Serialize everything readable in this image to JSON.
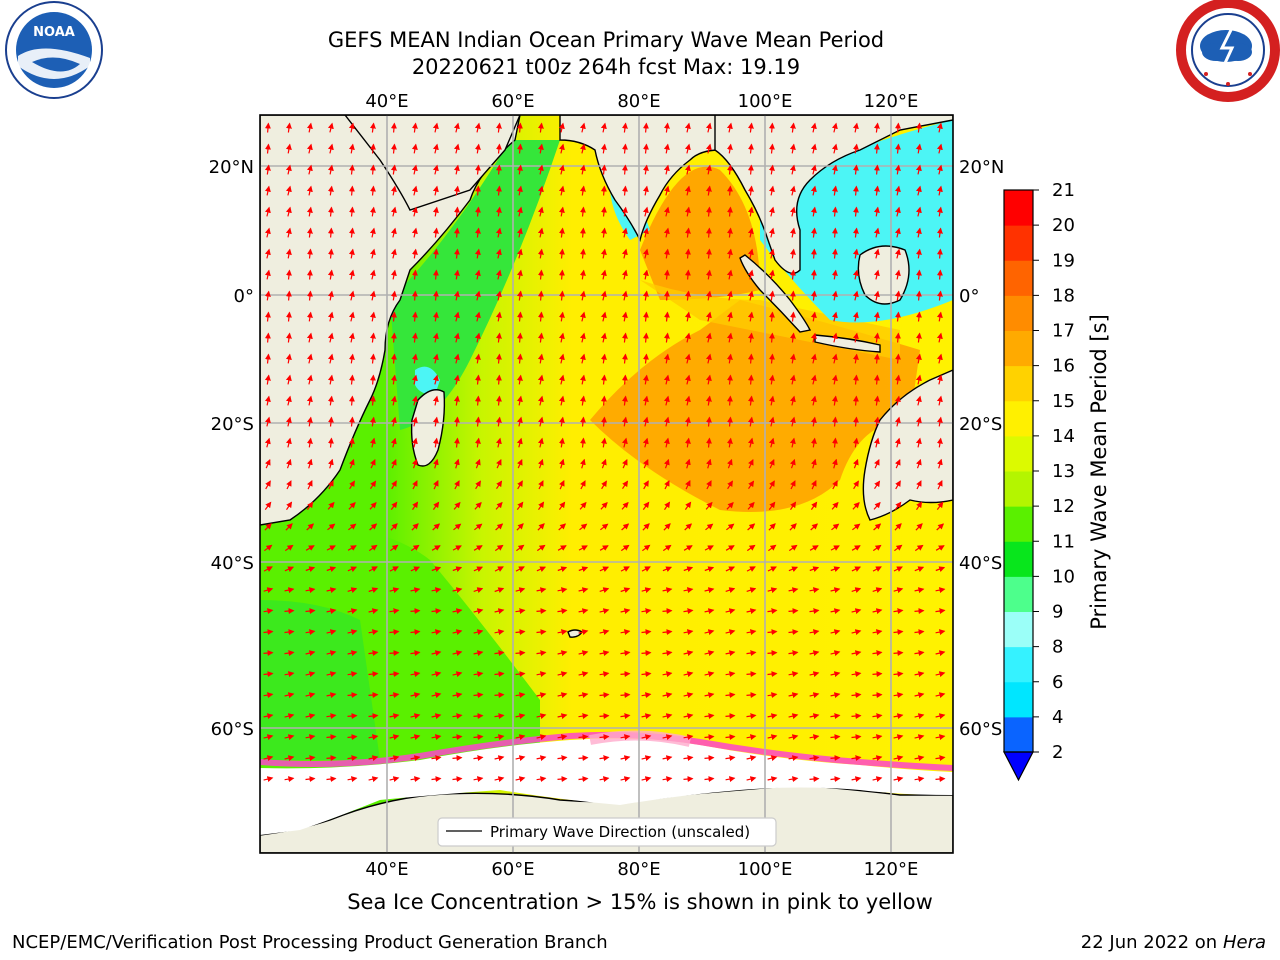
{
  "title_line1": "GEFS MEAN Indian Ocean Primary Wave Mean Period",
  "title_line2": "20220621 t00z 264h fcst   Max: 19.19",
  "legend_label": "Primary Wave Direction (unscaled)",
  "caption": "Sea Ice Concentration > 15% is shown in pink to yellow",
  "footer_left": "NCEP/EMC/Verification Post Processing Product Generation Branch",
  "footer_date": "22 Jun 2022 on",
  "footer_host": "Hera",
  "colorbar": {
    "label": "Primary Wave Mean Period [s]",
    "ticks": [
      "2",
      "4",
      "6",
      "8",
      "9",
      "10",
      "11",
      "12",
      "13",
      "14",
      "15",
      "16",
      "17",
      "18",
      "19",
      "20",
      "21"
    ],
    "colors": [
      "#0a64ff",
      "#00e6ff",
      "#35f2ff",
      "#9bfff8",
      "#4dff8c",
      "#08e61c",
      "#5af000",
      "#b4f500",
      "#dcfa00",
      "#fff000",
      "#ffd200",
      "#ffaa00",
      "#ff8c00",
      "#ff6400",
      "#ff3200",
      "#ff0000"
    ],
    "extend_color": "#0000ff"
  },
  "axes": {
    "lon_labels": [
      "40°E",
      "60°E",
      "80°E",
      "100°E",
      "120°E"
    ],
    "lat_labels_left": [
      "20°N",
      "0°",
      "20°S",
      "40°S",
      "60°S"
    ],
    "lat_labels_right": [
      "20°N",
      "0°",
      "20°S",
      "40°S",
      "60°S"
    ]
  },
  "logos": {
    "noaa_text": "NOAA"
  },
  "colors": {
    "land": "#efeedf",
    "ice": "#ffffff",
    "arrow": "#ff0000",
    "grid": "#b0b0b0"
  }
}
